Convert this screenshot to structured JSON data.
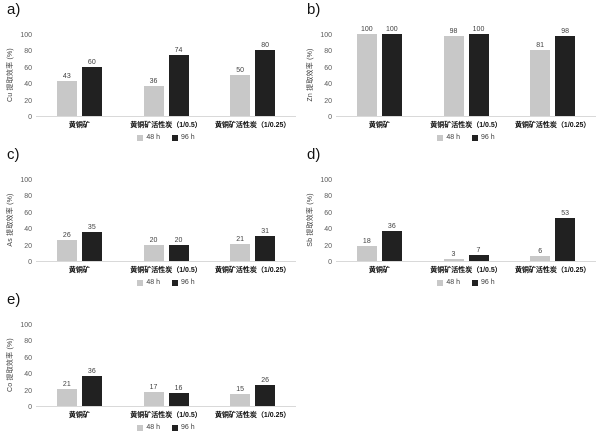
{
  "figure": {
    "background": "#ffffff",
    "axis_line_color": "#d9d9d9",
    "tick_label_color": "#595959",
    "value_label_color": "#404040",
    "series_colors": {
      "h48": "#c8c8c8",
      "h96": "#212121"
    }
  },
  "chart_data": [
    {
      "type": "bar",
      "panel_label": "a)",
      "title": "",
      "xlabel": "",
      "ylabel": "Cu 提取效率 (%)",
      "ylim": [
        0,
        100
      ],
      "yticks": [
        0,
        20,
        40,
        60,
        80,
        100
      ],
      "grid": false,
      "legend_position": "bottom",
      "categories": [
        "黄铜矿",
        "黄铜矿活性炭（1/0.5）",
        "黄铜矿活性炭（1/0.25）"
      ],
      "series": [
        {
          "name": "48 h",
          "color": "#c8c8c8",
          "values": [
            43,
            36,
            50
          ]
        },
        {
          "name": "96 h",
          "color": "#212121",
          "values": [
            60,
            74,
            80
          ]
        }
      ]
    },
    {
      "type": "bar",
      "panel_label": "b)",
      "title": "",
      "xlabel": "",
      "ylabel": "Zn 提取效率 (%)",
      "ylim": [
        0,
        100
      ],
      "yticks": [
        0,
        20,
        40,
        60,
        80,
        100
      ],
      "grid": false,
      "legend_position": "bottom",
      "categories": [
        "黄铜矿",
        "黄铜矿活性炭（1/0.5）",
        "黄铜矿活性炭（1/0.25）"
      ],
      "series": [
        {
          "name": "48 h",
          "color": "#c8c8c8",
          "values": [
            100,
            98,
            81
          ]
        },
        {
          "name": "96 h",
          "color": "#212121",
          "values": [
            100,
            100,
            98
          ]
        }
      ]
    },
    {
      "type": "bar",
      "panel_label": "c)",
      "title": "",
      "xlabel": "",
      "ylabel": "As 提取效率 (%)",
      "ylim": [
        0,
        100
      ],
      "yticks": [
        0,
        20,
        40,
        60,
        80,
        100
      ],
      "grid": false,
      "legend_position": "bottom",
      "categories": [
        "黄铜矿",
        "黄铜矿活性炭（1/0.5）",
        "黄铜矿活性炭（1/0.25）"
      ],
      "series": [
        {
          "name": "48 h",
          "color": "#c8c8c8",
          "values": [
            26,
            20,
            21
          ]
        },
        {
          "name": "96 h",
          "color": "#212121",
          "values": [
            35,
            20,
            31
          ]
        }
      ]
    },
    {
      "type": "bar",
      "panel_label": "d)",
      "title": "",
      "xlabel": "",
      "ylabel": "Sb 提取效率 (%)",
      "ylim": [
        0,
        100
      ],
      "yticks": [
        0,
        20,
        40,
        60,
        80,
        100
      ],
      "grid": false,
      "legend_position": "bottom",
      "categories": [
        "黄铜矿",
        "黄铜矿活性炭（1/0.5）",
        "黄铜矿活性炭（1/0.25）"
      ],
      "series": [
        {
          "name": "48 h",
          "color": "#c8c8c8",
          "values": [
            18,
            3,
            6
          ]
        },
        {
          "name": "96 h",
          "color": "#212121",
          "values": [
            36,
            7,
            53
          ]
        }
      ]
    },
    {
      "type": "bar",
      "panel_label": "e)",
      "title": "",
      "xlabel": "",
      "ylabel": "Co 提取效率 (%)",
      "ylim": [
        0,
        100
      ],
      "yticks": [
        0,
        20,
        40,
        60,
        80,
        100
      ],
      "grid": false,
      "legend_position": "bottom",
      "categories": [
        "黄铜矿",
        "黄铜矿活性炭（1/0.5）",
        "黄铜矿活性炭（1/0.25）"
      ],
      "series": [
        {
          "name": "48 h",
          "color": "#c8c8c8",
          "values": [
            21,
            17,
            15
          ]
        },
        {
          "name": "96 h",
          "color": "#212121",
          "values": [
            36,
            16,
            26
          ]
        }
      ]
    }
  ]
}
